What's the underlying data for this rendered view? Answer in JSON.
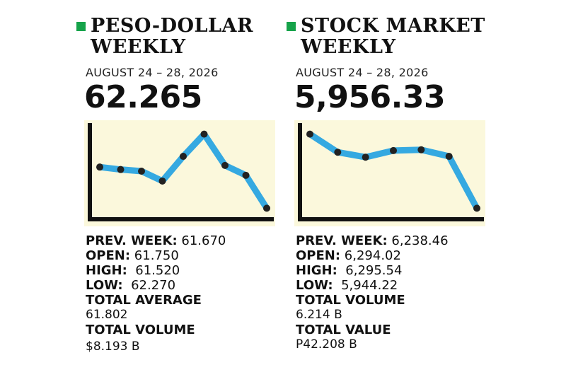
{
  "colors": {
    "bullet": "#16a34a",
    "line": "#35a9e1",
    "dot": "#222222",
    "plot_bg": "#fbf8dc",
    "axis": "#111111"
  },
  "panels": [
    {
      "title_line1": "PESO-DOLLAR",
      "title_line2": "WEEKLY",
      "date": "AUGUST 24 – 28, 2026",
      "big_value": "62.265",
      "stats": {
        "prev_label": "PREV. WEEK:",
        "prev_value": "61.670",
        "open_label": "OPEN:",
        "open_value": "61.750",
        "high_label": "HIGH:",
        "high_value": "61.520",
        "low_label": "LOW:",
        "low_value": "62.270",
        "extra1_label": "TOTAL AVERAGE",
        "extra1_value": "61.802",
        "extra2_label": "TOTAL VOLUME",
        "extra2_value": "$8.193 B"
      }
    },
    {
      "title_line1": "STOCK MARKET",
      "title_line2": "WEEKLY",
      "date": "AUGUST 24 – 28, 2026",
      "big_value": "5,956.33",
      "stats": {
        "prev_label": "PREV. WEEK:",
        "prev_value": "6,238.46",
        "open_label": "OPEN:",
        "open_value": "6,294.02",
        "high_label": "HIGH:",
        "high_value": "6,295.54",
        "low_label": "LOW:",
        "low_value": "5,944.22",
        "extra1_label": "TOTAL VOLUME",
        "extra1_value": "6.214 B",
        "extra2_label": "TOTAL VALUE",
        "extra2_value": "P42.208 B"
      }
    }
  ],
  "chart_data": [
    {
      "type": "line",
      "title": "",
      "xlabel": "",
      "ylabel": "",
      "x": [
        1,
        2,
        3,
        4,
        5,
        6,
        7,
        8,
        9
      ],
      "y": [
        0.6,
        0.57,
        0.55,
        0.43,
        0.73,
        1.0,
        0.62,
        0.5,
        0.1
      ],
      "ylim": [
        0,
        1.1
      ],
      "grid": false
    },
    {
      "type": "line",
      "title": "",
      "xlabel": "",
      "ylabel": "",
      "x": [
        1,
        2,
        3,
        4,
        5,
        6,
        7
      ],
      "y": [
        1.0,
        0.78,
        0.72,
        0.8,
        0.81,
        0.73,
        0.1
      ],
      "ylim": [
        0,
        1.1
      ],
      "grid": false
    }
  ]
}
